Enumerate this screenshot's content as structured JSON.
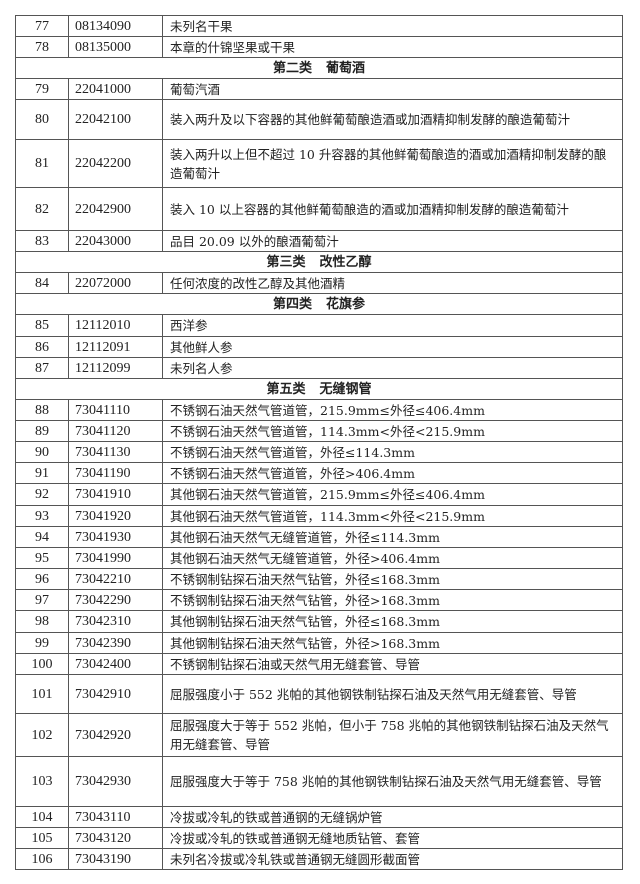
{
  "rows": [
    {
      "no": "77",
      "code": "08134090",
      "desc": "未列名干果"
    },
    {
      "no": "78",
      "code": "08135000",
      "desc": "本章的什锦坚果或干果"
    },
    {
      "section": "第二类",
      "section_name": "葡萄酒"
    },
    {
      "no": "79",
      "code": "22041000",
      "desc": "葡萄汽酒"
    },
    {
      "no": "80",
      "code": "22042100",
      "desc": "装入两升及以下容器的其他鲜葡萄酿造酒或加酒精抑制发酵的酿造葡萄汁"
    },
    {
      "no": "81",
      "code": "22042200",
      "desc": "装入两升以上但不超过 10 升容器的其他鲜葡萄酿造的酒或加酒精抑制发酵的酿造葡萄汁"
    },
    {
      "no": "82",
      "code": "22042900",
      "desc": "装入 10 以上容器的其他鲜葡萄酿造的酒或加酒精抑制发酵的酿造葡萄汁"
    },
    {
      "no": "83",
      "code": "22043000",
      "desc": "品目 20.09 以外的酿酒葡萄汁"
    },
    {
      "section": "第三类",
      "section_name": "改性乙醇"
    },
    {
      "no": "84",
      "code": "22072000",
      "desc": "任何浓度的改性乙醇及其他酒精"
    },
    {
      "section": "第四类",
      "section_name": "花旗参"
    },
    {
      "no": "85",
      "code": "12112010",
      "desc": "西洋参"
    },
    {
      "no": "86",
      "code": "12112091",
      "desc": "其他鲜人参"
    },
    {
      "no": "87",
      "code": "12112099",
      "desc": "未列名人参"
    },
    {
      "section": "第五类",
      "section_name": "无缝钢管"
    },
    {
      "no": "88",
      "code": "73041110",
      "desc": "不锈钢石油天然气管道管，215.9mm≤外径≤406.4mm"
    },
    {
      "no": "89",
      "code": "73041120",
      "desc": "不锈钢石油天然气管道管，114.3mm<外径<215.9mm"
    },
    {
      "no": "90",
      "code": "73041130",
      "desc": "不锈钢石油天然气管道管，外径≤114.3mm"
    },
    {
      "no": "91",
      "code": "73041190",
      "desc": "不锈钢石油天然气管道管，外径>406.4mm"
    },
    {
      "no": "92",
      "code": "73041910",
      "desc": "其他钢石油天然气管道管，215.9mm≤外径≤406.4mm"
    },
    {
      "no": "93",
      "code": "73041920",
      "desc": "其他钢石油天然气管道管，114.3mm<外径<215.9mm"
    },
    {
      "no": "94",
      "code": "73041930",
      "desc": "其他钢石油天然气无缝管道管，外径≤114.3mm"
    },
    {
      "no": "95",
      "code": "73041990",
      "desc": "其他钢石油天然气无缝管道管，外径>406.4mm"
    },
    {
      "no": "96",
      "code": "73042210",
      "desc": "不锈钢制钻探石油天然气钻管，外径≤168.3mm"
    },
    {
      "no": "97",
      "code": "73042290",
      "desc": "不锈钢制钻探石油天然气钻管，外径>168.3mm"
    },
    {
      "no": "98",
      "code": "73042310",
      "desc": "其他钢制钻探石油天然气钻管，外径≤168.3mm"
    },
    {
      "no": "99",
      "code": "73042390",
      "desc": "其他钢制钻探石油天然气钻管，外径>168.3mm"
    },
    {
      "no": "100",
      "code": "73042400",
      "desc": "不锈钢制钻探石油或天然气用无缝套管、导管"
    },
    {
      "no": "101",
      "code": "73042910",
      "desc": "屈服强度小于 552 兆帕的其他钢铁制钻探石油及天然气用无缝套管、导管"
    },
    {
      "no": "102",
      "code": "73042920",
      "desc": "屈服强度大于等于 552 兆帕，但小于 758 兆帕的其他钢铁制钻探石油及天然气用无缝套管、导管"
    },
    {
      "no": "103",
      "code": "73042930",
      "desc": "屈服强度大于等于 758 兆帕的其他钢铁制钻探石油及天然气用无缝套管、导管"
    },
    {
      "no": "104",
      "code": "73043110",
      "desc": "冷拔或冷轧的铁或普通钢的无缝锅炉管"
    },
    {
      "no": "105",
      "code": "73043120",
      "desc": "冷拔或冷轧的铁或普通钢无缝地质钻管、套管"
    },
    {
      "no": "106",
      "code": "73043190",
      "desc": "未列名冷拔或冷轧铁或普通钢无缝圆形截面管"
    }
  ]
}
